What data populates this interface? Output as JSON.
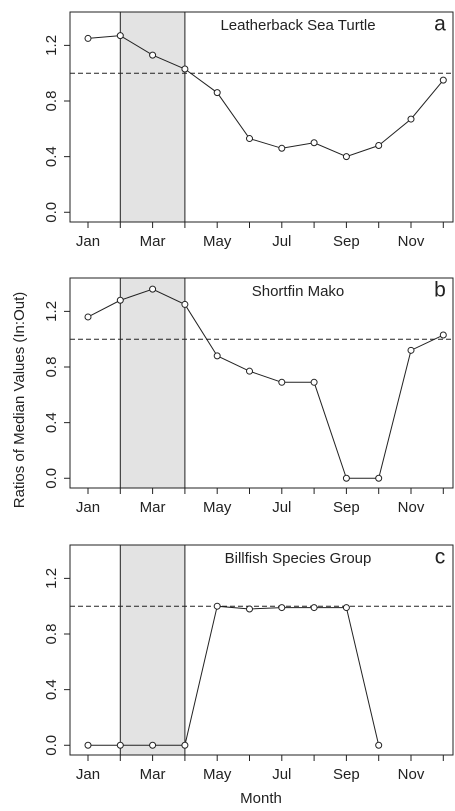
{
  "y_label": "Ratios of Median Values (In:Out)",
  "x_label": "Month",
  "chart_data": [
    {
      "type": "line",
      "title": "Leatherback Sea Turtle",
      "label": "a",
      "categories": [
        "Jan",
        null,
        "Mar",
        null,
        "May",
        null,
        "Jul",
        null,
        "Sep",
        null,
        "Nov",
        null
      ],
      "values": [
        1.25,
        1.27,
        1.13,
        1.03,
        0.86,
        0.53,
        0.46,
        0.5,
        0.4,
        0.48,
        0.67,
        0.95
      ],
      "ylim": [
        -0.07,
        1.44
      ],
      "yticks": [
        {
          "value": 0,
          "label": "0.0"
        },
        0.4,
        0.8,
        1.2
      ],
      "hline": 1,
      "shaded": [
        1,
        3
      ]
    },
    {
      "type": "line",
      "title": "Shortfin Mako",
      "label": "b",
      "categories": [
        "Jan",
        null,
        "Mar",
        null,
        "May",
        null,
        "Jul",
        null,
        "Sep",
        null,
        "Nov",
        null
      ],
      "values": [
        1.16,
        1.28,
        1.36,
        1.25,
        0.88,
        0.77,
        0.69,
        0.69,
        0,
        0,
        0.92,
        1.03
      ],
      "ylim": [
        -0.07,
        1.44
      ],
      "yticks": [
        {
          "value": 0,
          "label": "0.0"
        },
        0.4,
        0.8,
        1.2
      ],
      "hline": 1,
      "shaded": [
        1,
        3
      ]
    },
    {
      "type": "line",
      "title": "Billfish Species Group",
      "label": "c",
      "categories": [
        "Jan",
        null,
        "Mar",
        null,
        "May",
        null,
        "Jul",
        null,
        "Sep",
        null,
        "Nov",
        null
      ],
      "values": [
        0,
        0,
        0,
        0,
        1,
        0.98,
        0.99,
        0.99,
        0.99,
        0,
        null,
        null
      ],
      "ylim": [
        -0.07,
        1.44
      ],
      "yticks": [
        {
          "value": 0,
          "label": "0.0"
        },
        0.4,
        0.8,
        1.2
      ],
      "hline": 1,
      "shaded": [
        1,
        3
      ]
    }
  ]
}
